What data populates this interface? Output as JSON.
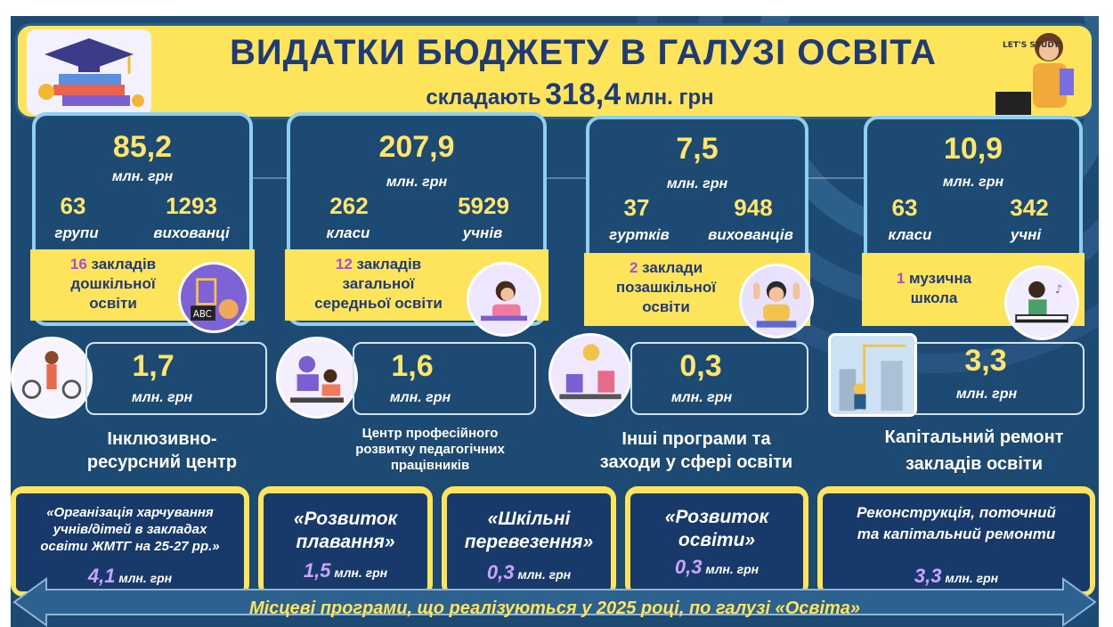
{
  "header": {
    "title": "ВИДАТКИ БЮДЖЕТУ В ГАЛУЗІ ОСВІТА",
    "subtitle_prefix": "складають",
    "subtitle_value": "318,4",
    "subtitle_unit": "млн. грн",
    "badge": "LET'S STUDY!"
  },
  "cards": [
    {
      "amount": "85,2",
      "unit": "млн. грн",
      "left_num": "63",
      "left_label": "групи",
      "right_num": "1293",
      "right_label": "вихованці",
      "inst_count": "16",
      "inst_text_1": " закладів",
      "inst_text_2": "дошкільної",
      "inst_text_3": "освіти",
      "icon": "abc-blocks-icon"
    },
    {
      "amount": "207,9",
      "unit": "млн. грн",
      "left_num": "262",
      "left_label": "класи",
      "right_num": "5929",
      "right_label": "учнів",
      "inst_count": "12",
      "inst_text_1": " закладів",
      "inst_text_2": "загальної",
      "inst_text_3": "середньої освіти",
      "icon": "student-writing-icon"
    },
    {
      "amount": "7,5",
      "unit": "млн. грн",
      "left_num": "37",
      "left_label": "гуртків",
      "right_num": "948",
      "right_label": "вихованців",
      "inst_count": "2",
      "inst_text_1": " заклади",
      "inst_text_2": "позашкільної",
      "inst_text_3": "освіти",
      "icon": "boy-raising-hands-icon"
    },
    {
      "amount": "10,9",
      "unit": "млн. грн",
      "left_num": "63",
      "left_label": "класи",
      "right_num": "342",
      "right_label": "учні",
      "inst_count": "1",
      "inst_text_1": " музична",
      "inst_text_2": "школа",
      "inst_text_3": "",
      "icon": "pianist-icon"
    }
  ],
  "mid": [
    {
      "amount": "1,7",
      "unit": "млн. грн",
      "caption_1": "Інклюзивно-",
      "caption_2": "ресурсний центр",
      "caption_3": "",
      "icon": "inclusive-children-icon"
    },
    {
      "amount": "1,6",
      "unit": "млн. грн",
      "caption_1": "Центр професійного",
      "caption_2": "розвитку педагогічних",
      "caption_3": "працівників",
      "icon": "teacher-development-icon"
    },
    {
      "amount": "0,3",
      "unit": "млн. грн",
      "caption_1": "Інші програми та",
      "caption_2": "заходи у сфері освіти",
      "caption_3": "",
      "icon": "education-programs-icon"
    },
    {
      "amount": "3,3",
      "unit": "млн. грн",
      "caption_1": "Капітальний ремонт",
      "caption_2": "закладів освіти",
      "caption_3": "",
      "icon": "construction-icon"
    }
  ],
  "programs": [
    {
      "line_1": "«Організація харчування",
      "line_2": "учнів/дітей в закладах",
      "line_3": "освіти ЖМТГ на 25-27 рр.»",
      "value": "4,1",
      "unit": "млн. грн"
    },
    {
      "line_1": "«Розвиток",
      "line_2": "плавання»",
      "line_3": "",
      "value": "1,5",
      "unit": "млн. грн"
    },
    {
      "line_1": "«Шкільні",
      "line_2": "перевезення»",
      "line_3": "",
      "value": "0,3",
      "unit": "млн. грн"
    },
    {
      "line_1": "«Розвиток",
      "line_2": "освіти»",
      "line_3": "",
      "value": "0,3",
      "unit": "млн. грн"
    },
    {
      "line_1": "Реконструкція, поточний",
      "line_2": "та капітальний ремонти",
      "line_3": "",
      "value": "3,3",
      "unit": "млн. грн"
    }
  ],
  "footer": {
    "text": "Місцеві програми, що реалізуються у 2025 році, по галузі «Освіта»"
  },
  "colors": {
    "navy": "#1d4a73",
    "yellow": "#fde45a",
    "gold_text": "#ffe66b",
    "purple": "#a64fd6",
    "dark_blue_text": "#1f3a78"
  }
}
